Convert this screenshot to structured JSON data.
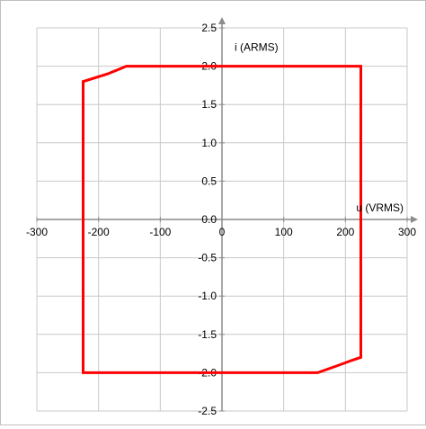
{
  "chart_data": {
    "type": "line",
    "xlabel": "u (VRMS)",
    "ylabel": "i (ARMS)",
    "xlim": [
      -300,
      300
    ],
    "ylim": [
      -2.5,
      2.5
    ],
    "x_ticks": [
      -300,
      -200,
      -100,
      0,
      100,
      200,
      300
    ],
    "y_ticks": [
      2.5,
      2.0,
      1.5,
      1.0,
      0.5,
      0.0,
      -0.5,
      -1.0,
      -1.5,
      -2.0,
      -2.5
    ],
    "x_tick_labels": [
      "-300",
      "-200",
      "-100",
      "0",
      "100",
      "200",
      "300"
    ],
    "y_tick_labels": [
      "2.5",
      "2.0",
      "1.5",
      "1.0",
      "0.5",
      "0.0",
      "-0.5",
      "-1.0",
      "-1.5",
      "-2.0",
      "-2.5"
    ],
    "grid": true,
    "series": [
      {
        "color": "#ff0000",
        "closed": true,
        "points": [
          [
            -155,
            2.0
          ],
          [
            225,
            2.0
          ],
          [
            225,
            -1.8
          ],
          [
            210,
            -1.84
          ],
          [
            190,
            -1.9
          ],
          [
            155,
            -2.0
          ],
          [
            -225,
            -2.0
          ],
          [
            -225,
            1.8
          ],
          [
            -185,
            1.9
          ]
        ]
      }
    ]
  }
}
